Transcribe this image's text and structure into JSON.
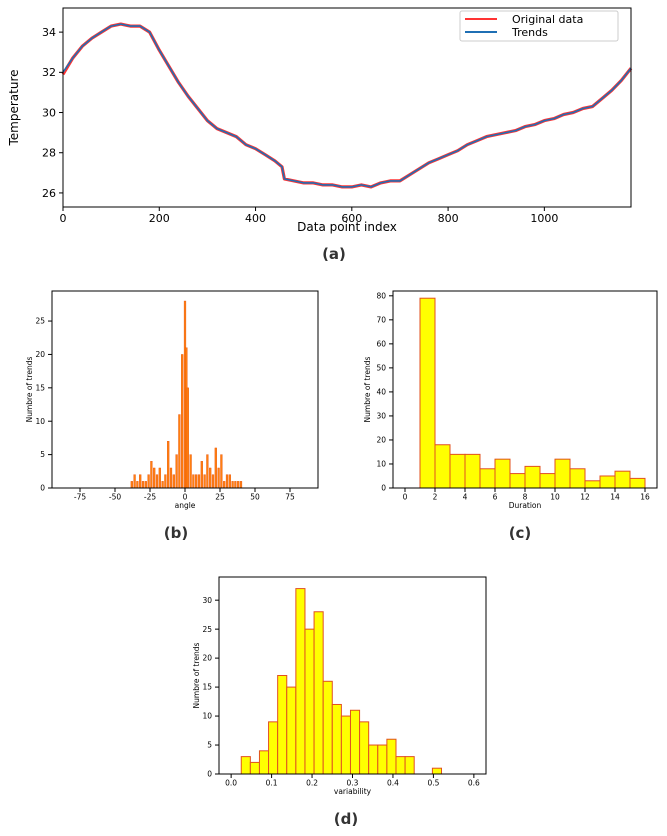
{
  "captions": {
    "a": "(a)",
    "b": "(b)",
    "c": "(c)",
    "d": "(d)"
  },
  "chart_data": [
    {
      "id": "a",
      "type": "line",
      "xlabel": "Data point index",
      "ylabel": "Temperature",
      "xlim": [
        0,
        1180
      ],
      "ylim": [
        25.3,
        35.2
      ],
      "xticks": [
        0,
        200,
        400,
        600,
        800,
        1000
      ],
      "yticks": [
        26,
        28,
        30,
        32,
        34
      ],
      "legend_position": "top-right",
      "series": [
        {
          "name": "Original data",
          "color": "#ff3333",
          "x": [
            0,
            20,
            40,
            60,
            80,
            100,
            120,
            140,
            160,
            180,
            200,
            220,
            240,
            260,
            280,
            300,
            320,
            340,
            360,
            380,
            400,
            420,
            440,
            455,
            460,
            480,
            500,
            520,
            540,
            560,
            580,
            600,
            620,
            640,
            660,
            680,
            700,
            720,
            740,
            760,
            780,
            800,
            820,
            840,
            860,
            880,
            900,
            920,
            940,
            960,
            980,
            1000,
            1020,
            1040,
            1060,
            1080,
            1100,
            1120,
            1140,
            1160,
            1180
          ],
          "y": [
            31.9,
            32.7,
            33.3,
            33.7,
            34.0,
            34.3,
            34.4,
            34.3,
            34.3,
            34.0,
            33.1,
            32.3,
            31.5,
            30.8,
            30.2,
            29.6,
            29.2,
            29.0,
            28.8,
            28.4,
            28.2,
            27.9,
            27.6,
            27.3,
            26.7,
            26.6,
            26.5,
            26.5,
            26.4,
            26.4,
            26.3,
            26.3,
            26.4,
            26.3,
            26.5,
            26.6,
            26.6,
            26.9,
            27.2,
            27.5,
            27.7,
            27.9,
            28.1,
            28.4,
            28.6,
            28.8,
            28.9,
            29.0,
            29.1,
            29.3,
            29.4,
            29.6,
            29.7,
            29.9,
            30.0,
            30.2,
            30.3,
            30.7,
            31.1,
            31.6,
            32.2
          ]
        },
        {
          "name": "Trends",
          "color": "#1f6fb4",
          "x": [
            0,
            20,
            40,
            60,
            80,
            100,
            120,
            140,
            160,
            180,
            200,
            220,
            240,
            260,
            280,
            300,
            320,
            340,
            360,
            380,
            400,
            420,
            440,
            455,
            460,
            480,
            500,
            520,
            540,
            560,
            580,
            600,
            620,
            640,
            660,
            680,
            700,
            720,
            740,
            760,
            780,
            800,
            820,
            840,
            860,
            880,
            900,
            920,
            940,
            960,
            980,
            1000,
            1020,
            1040,
            1060,
            1080,
            1100,
            1120,
            1140,
            1160,
            1180
          ],
          "y": [
            32.0,
            32.7,
            33.3,
            33.7,
            34.0,
            34.3,
            34.4,
            34.3,
            34.3,
            34.0,
            33.1,
            32.3,
            31.5,
            30.8,
            30.2,
            29.6,
            29.2,
            29.0,
            28.8,
            28.4,
            28.2,
            27.9,
            27.6,
            27.3,
            26.7,
            26.6,
            26.5,
            26.5,
            26.4,
            26.4,
            26.3,
            26.3,
            26.4,
            26.3,
            26.5,
            26.6,
            26.6,
            26.9,
            27.2,
            27.5,
            27.7,
            27.9,
            28.1,
            28.4,
            28.6,
            28.8,
            28.9,
            29.0,
            29.1,
            29.3,
            29.4,
            29.6,
            29.7,
            29.9,
            30.0,
            30.2,
            30.3,
            30.7,
            31.1,
            31.6,
            32.2
          ]
        }
      ]
    },
    {
      "id": "b",
      "type": "bar",
      "xlabel": "angle",
      "ylabel": "Numbre of trends",
      "xlim": [
        -95,
        95
      ],
      "ylim": [
        0,
        29.5
      ],
      "xticks": [
        -75,
        -50,
        -25,
        0,
        25,
        50,
        75
      ],
      "yticks": [
        0,
        5,
        10,
        15,
        20,
        25
      ],
      "bar_color": "#ff7f0e",
      "bar_edge": "#e8530c",
      "x": [
        -38,
        -36,
        -34,
        -32,
        -30,
        -28,
        -26,
        -24,
        -22,
        -20,
        -18,
        -16,
        -14,
        -12,
        -10,
        -8,
        -6,
        -4,
        -2,
        0,
        1,
        2,
        4,
        6,
        8,
        10,
        12,
        14,
        16,
        18,
        20,
        22,
        24,
        26,
        28,
        30,
        32,
        34,
        36,
        38,
        40
      ],
      "values": [
        1,
        2,
        1,
        2,
        1,
        1,
        2,
        4,
        3,
        2,
        3,
        1,
        2,
        7,
        3,
        2,
        5,
        11,
        20,
        28,
        21,
        15,
        5,
        2,
        2,
        2,
        4,
        2,
        5,
        3,
        2,
        6,
        3,
        5,
        1,
        2,
        2,
        1,
        1,
        1,
        1
      ]
    },
    {
      "id": "c",
      "type": "bar",
      "xlabel": "Duration",
      "ylabel": "Numbre of trends",
      "xlim": [
        -0.8,
        16.8
      ],
      "ylim": [
        0,
        82
      ],
      "xticks": [
        0,
        2,
        4,
        6,
        8,
        10,
        12,
        14,
        16
      ],
      "yticks": [
        0,
        10,
        20,
        30,
        40,
        50,
        60,
        70,
        80
      ],
      "bar_color": "#ffff00",
      "bar_edge": "#e05020",
      "bins": [
        [
          1,
          2
        ],
        [
          2,
          3
        ],
        [
          3,
          4
        ],
        [
          4,
          5
        ],
        [
          5,
          6
        ],
        [
          6,
          7
        ],
        [
          7,
          8
        ],
        [
          8,
          9
        ],
        [
          9,
          10
        ],
        [
          10,
          11
        ],
        [
          11,
          12
        ],
        [
          12,
          13
        ],
        [
          13,
          14
        ],
        [
          14,
          15
        ],
        [
          15,
          16
        ]
      ],
      "values": [
        79,
        18,
        14,
        14,
        8,
        12,
        6,
        9,
        6,
        12,
        8,
        3,
        5,
        7,
        4
      ]
    },
    {
      "id": "d",
      "type": "bar",
      "xlabel": "variability",
      "ylabel": "Numbre of trends",
      "xlim": [
        -0.03,
        0.63
      ],
      "ylim": [
        0,
        34
      ],
      "xticks": [
        0.0,
        0.1,
        0.2,
        0.3,
        0.4,
        0.5,
        0.6
      ],
      "yticks": [
        0,
        5,
        10,
        15,
        20,
        25,
        30
      ],
      "bar_color": "#ffff00",
      "bar_edge": "#e05020",
      "bin_start": 0.025,
      "bin_width": 0.0225,
      "values": [
        3,
        2,
        4,
        9,
        17,
        15,
        32,
        25,
        28,
        16,
        12,
        10,
        11,
        9,
        5,
        5,
        6,
        3,
        3,
        0,
        0,
        1
      ]
    }
  ]
}
